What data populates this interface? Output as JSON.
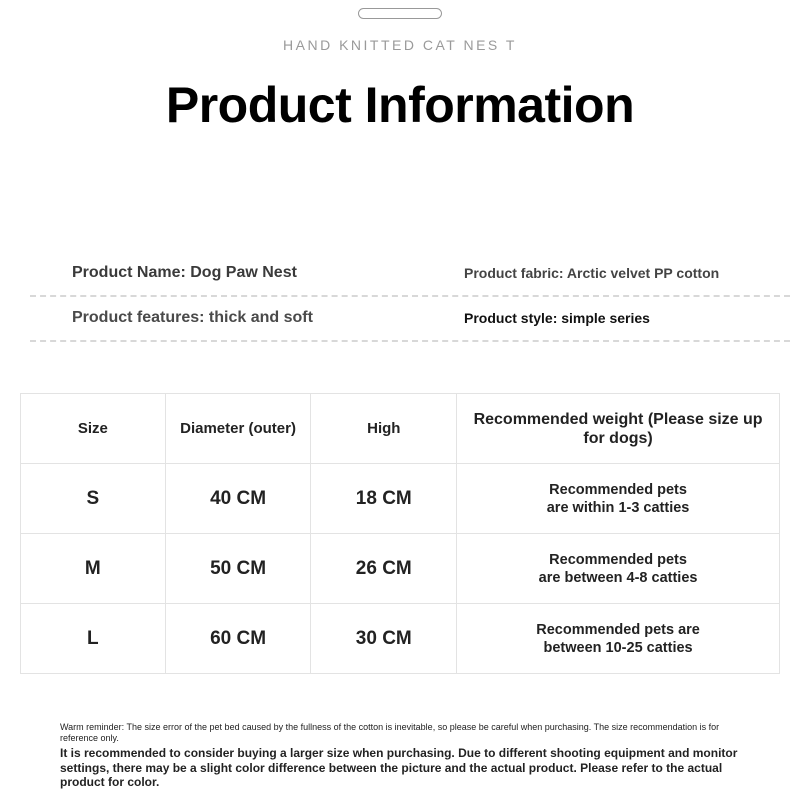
{
  "header": {
    "subtitle": "HAND KNITTED CAT NES T",
    "title": "Product Information"
  },
  "info": {
    "name": "Product Name: Dog Paw Nest",
    "fabric": "Product fabric: Arctic velvet PP cotton",
    "features": "Product features: thick and soft",
    "style": "Product style: simple series"
  },
  "table": {
    "headers": [
      "Size",
      "Diameter (outer)",
      "High",
      "Recommended weight (Please size up for dogs)"
    ],
    "rows": [
      {
        "size": "S",
        "diameter": "40 CM",
        "high": "18 CM",
        "recommend": "Recommended pets are within 1-3 catties"
      },
      {
        "size": "M",
        "diameter": "50 CM",
        "high": "26 CM",
        "recommend": "Recommended pets are between 4-8 catties"
      },
      {
        "size": "L",
        "diameter": "60 CM",
        "high": "30 CM",
        "recommend": "Recommended pets are between 10-25 catties"
      }
    ]
  },
  "notes": {
    "reminder": "Warm reminder: The size error of the pet bed caused by the fullness of the cotton is inevitable, so please be careful when purchasing. The size recommendation is for reference only.",
    "advice": "It is recommended to consider buying a larger size when purchasing. Due to different shooting equipment and monitor settings, there may be a slight color difference between the picture and the actual product. Please refer to the actual product for color."
  }
}
